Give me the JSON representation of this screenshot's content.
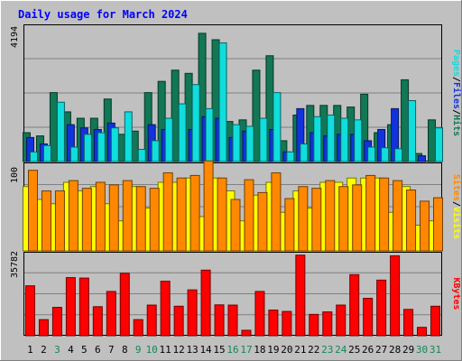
{
  "chart_data": {
    "type": "bar",
    "title": "Daily usage for March 2024",
    "categories": [
      "1",
      "2",
      "3",
      "4",
      "5",
      "6",
      "7",
      "8",
      "9",
      "10",
      "11",
      "12",
      "13",
      "14",
      "15",
      "16",
      "17",
      "18",
      "19",
      "20",
      "21",
      "22",
      "23",
      "24",
      "25",
      "26",
      "27",
      "28",
      "29",
      "30",
      "31"
    ],
    "weekend_days": [
      3,
      9,
      10,
      16,
      17,
      23,
      24,
      30,
      31
    ],
    "panels": [
      {
        "ymax": 4194,
        "ylabel_parts": [
          "Pages",
          "/",
          "Files",
          "/",
          "Hits"
        ],
        "series": [
          {
            "name": "Hits",
            "color": "#117755",
            "values": [
              900,
              800,
              2150,
              1550,
              1350,
              1350,
              1950,
              850,
              950,
              2150,
              2500,
              2850,
              2750,
              4000,
              3800,
              1250,
              1300,
              2850,
              3300,
              650,
              1450,
              1750,
              1750,
              1750,
              1700,
              2100,
              900,
              1150,
              2550,
              250,
              1300
            ]
          },
          {
            "name": "Files",
            "color": "#1133dd",
            "values": [
              750,
              550,
              0,
              1150,
              1050,
              1000,
              1200,
              0,
              0,
              1150,
              1000,
              0,
              1000,
              1400,
              1350,
              750,
              950,
              0,
              1000,
              300,
              1650,
              900,
              800,
              850,
              850,
              650,
              1000,
              1650,
              0,
              180,
              0
            ]
          },
          {
            "name": "Pages",
            "color": "#11dddd",
            "values": [
              300,
              500,
              1850,
              450,
              850,
              900,
              1050,
              1550,
              380,
              650,
              1350,
              1800,
              2400,
              1650,
              3700,
              1150,
              1100,
              1350,
              2150,
              300,
              550,
              1400,
              1450,
              1350,
              1300,
              450,
              430,
              400,
              1900,
              0,
              1050
            ]
          }
        ]
      },
      {
        "ymax": 100,
        "ylabel_parts": [
          "Sites",
          "/",
          "Visits"
        ],
        "series": [
          {
            "name": "Visits",
            "color": "#ffff00",
            "values": [
              75,
              60,
              55,
              80,
              70,
              75,
              55,
              35,
              75,
              50,
              80,
              80,
              85,
              40,
              85,
              70,
              35,
              65,
              80,
              45,
              70,
              50,
              80,
              80,
              85,
              85,
              85,
              45,
              75,
              30,
              35
            ]
          },
          {
            "name": "Sites",
            "color": "#ff8800",
            "values": [
              94,
              70,
              70,
              82,
              73,
              80,
              77,
              82,
              75,
              73,
              91,
              85,
              88,
              114,
              85,
              60,
              83,
              68,
              91,
              61,
              75,
              73,
              82,
              75,
              77,
              88,
              85,
              82,
              71,
              58,
              62
            ]
          }
        ]
      },
      {
        "ymax": 35782,
        "ylabel_parts": [
          "KBytes"
        ],
        "series": [
          {
            "name": "KBytes",
            "color": "#ff0000",
            "values": [
              22000,
              7100,
              12500,
              25600,
              25400,
              12800,
              19500,
              27500,
              7100,
              13500,
              24000,
              13000,
              20200,
              28900,
              13600,
              13500,
              2400,
              19500,
              11300,
              10700,
              35500,
              9400,
              10500,
              13500,
              26900,
              16500,
              24500,
              35200,
              11600,
              3700,
              13000
            ]
          }
        ]
      }
    ]
  }
}
